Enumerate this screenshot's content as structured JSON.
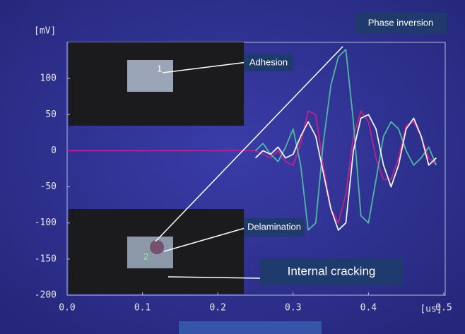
{
  "chart_data": {
    "type": "line",
    "y_axis_label": "[mV]",
    "x_axis_label": "[us]",
    "xlim": [
      0,
      0.5
    ],
    "ylim": [
      -200,
      150
    ],
    "xticks": [
      {
        "value": 0,
        "label": "0.0"
      },
      0.1,
      0.2,
      0.3,
      0.4,
      0.5
    ],
    "yticks": [
      -200,
      -150,
      -100,
      -50,
      0,
      50,
      100
    ],
    "x": [
      0,
      0.25,
      0.26,
      0.27,
      0.28,
      0.29,
      0.3,
      0.31,
      0.32,
      0.33,
      0.34,
      0.35,
      0.36,
      0.37,
      0.38,
      0.39,
      0.4,
      0.41,
      0.42,
      0.43,
      0.44,
      0.45,
      0.46,
      0.47,
      0.48,
      0.49
    ],
    "series": [
      {
        "color": "#c0208a",
        "values": [
          0,
          0,
          -5,
          -10,
          0,
          -15,
          -20,
          10,
          55,
          50,
          -20,
          -80,
          -100,
          -60,
          20,
          55,
          40,
          -10,
          -40,
          -40,
          -10,
          35,
          40,
          20,
          -10,
          -20
        ]
      },
      {
        "color": "#4fb8a0",
        "values": [
          null,
          0,
          10,
          -5,
          -15,
          5,
          30,
          -20,
          -110,
          -100,
          10,
          90,
          130,
          140,
          40,
          -90,
          -100,
          -40,
          20,
          40,
          30,
          0,
          -20,
          -10,
          5,
          -20
        ]
      },
      {
        "color": "#f2f2f2",
        "values": [
          null,
          -10,
          0,
          -5,
          5,
          -10,
          -5,
          20,
          40,
          20,
          -30,
          -80,
          -110,
          -100,
          0,
          45,
          50,
          30,
          -20,
          -50,
          -20,
          30,
          45,
          20,
          -20,
          -10
        ]
      }
    ],
    "annotations": [
      "Phase inversion",
      "Adhesion",
      "Delamination",
      "Internal cracking"
    ],
    "inset_labels": [
      "1",
      "2"
    ]
  }
}
